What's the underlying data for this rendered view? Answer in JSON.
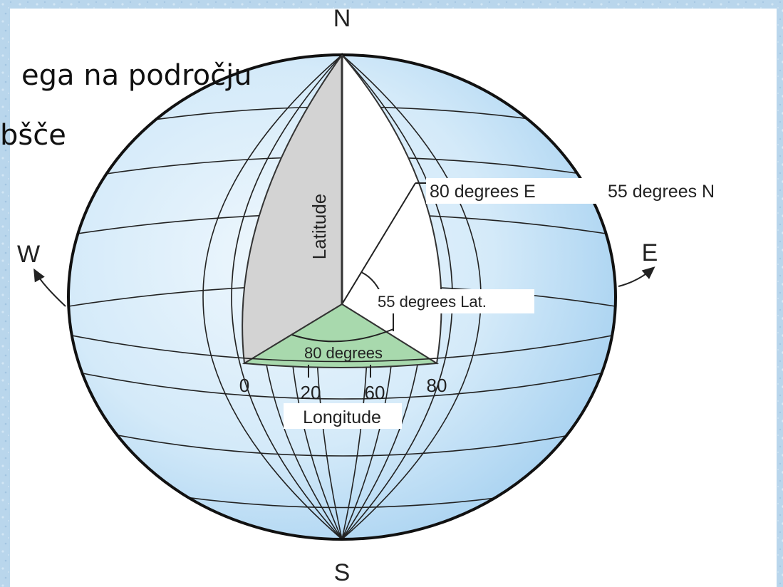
{
  "slide": {
    "line1": "ega na področju",
    "line2": "bšče"
  },
  "diagram": {
    "cardinal": {
      "north": "N",
      "south": "S",
      "west": "W",
      "east": "E"
    },
    "labels": {
      "latitude": "Latitude",
      "point_lon": "80 degrees E",
      "point_lat": "55 degrees N",
      "lat_angle": "55 degrees Lat.",
      "lon_angle": "80 degrees",
      "longitude": "Longitude"
    },
    "ticks": [
      "0",
      "20",
      "60",
      "80"
    ],
    "colors": {
      "background": "#b9d6ec",
      "panel": "#ffffff",
      "globe_light": "#e9f4fc",
      "globe_dark": "#a9d3f0",
      "latitude_wedge": "#d4d4d4",
      "longitude_wedge": "#a8d9ad",
      "grid": "#222222"
    }
  }
}
